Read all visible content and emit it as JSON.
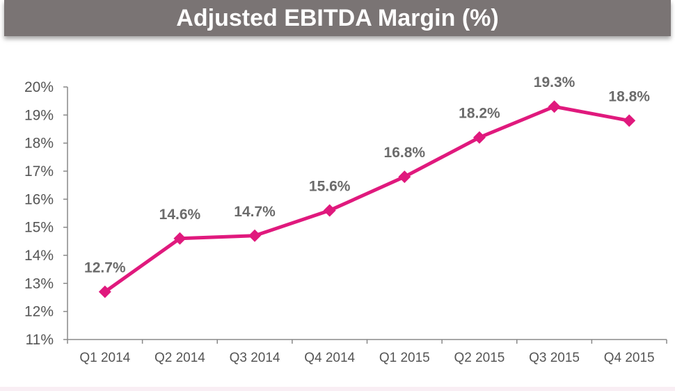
{
  "header": {
    "title": "Adjusted EBITDA Margin (%)"
  },
  "colors": {
    "series": "#e0197d",
    "title_bg": "#7a7474",
    "axis": "#888888",
    "label": "#6b6b6b"
  },
  "chart_data": {
    "type": "line",
    "title": "Adjusted EBITDA Margin (%)",
    "categories": [
      "Q1 2014",
      "Q2 2014",
      "Q3 2014",
      "Q4 2014",
      "Q1 2015",
      "Q2 2015",
      "Q3 2015",
      "Q4 2015"
    ],
    "series": [
      {
        "values": [
          12.7,
          14.6,
          14.7,
          15.6,
          16.8,
          18.2,
          19.3,
          18.8
        ]
      }
    ],
    "data_labels": [
      "12.7%",
      "14.6%",
      "14.7%",
      "15.6%",
      "16.8%",
      "18.2%",
      "19.3%",
      "18.8%"
    ],
    "ylim": [
      11,
      20
    ],
    "yticks": [
      11,
      12,
      13,
      14,
      15,
      16,
      17,
      18,
      19,
      20
    ],
    "ytick_labels": [
      "11%",
      "12%",
      "13%",
      "14%",
      "15%",
      "16%",
      "17%",
      "18%",
      "19%",
      "20%"
    ],
    "marker": "diamond",
    "grid": false,
    "legend": "none"
  }
}
